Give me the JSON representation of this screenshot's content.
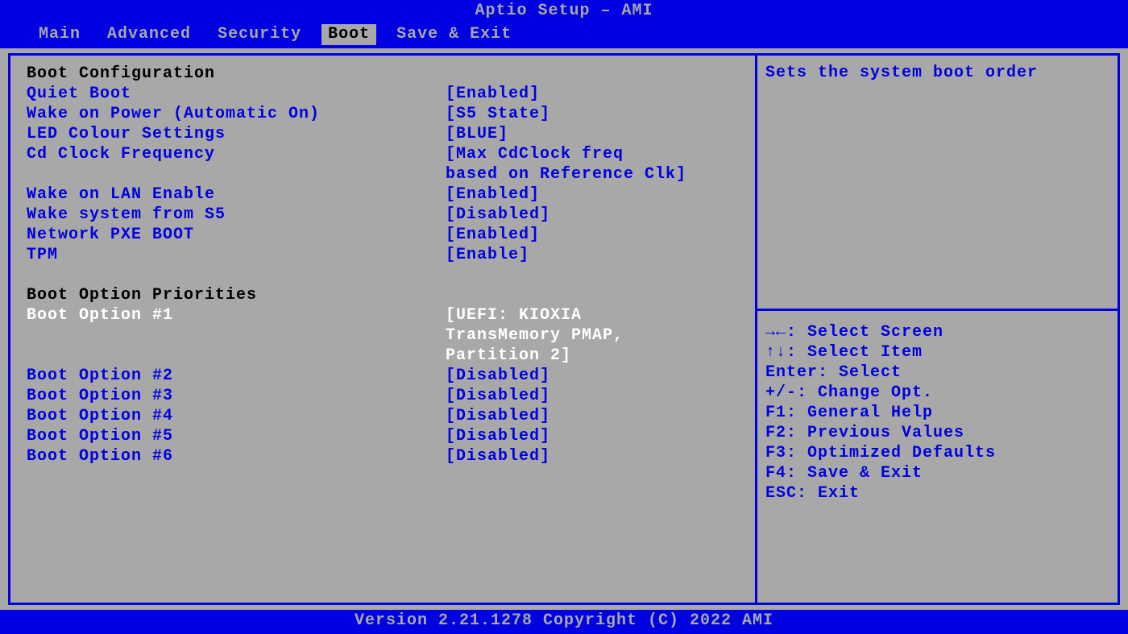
{
  "header": {
    "title": "Aptio Setup – AMI"
  },
  "tabs": [
    {
      "label": "Main",
      "active": false
    },
    {
      "label": "Advanced",
      "active": false
    },
    {
      "label": "Security",
      "active": false
    },
    {
      "label": "Boot",
      "active": true
    },
    {
      "label": "Save & Exit",
      "active": false
    }
  ],
  "sections": {
    "boot_config": {
      "heading": "Boot Configuration",
      "items": [
        {
          "label": "Quiet Boot",
          "value": "[Enabled]",
          "selected": false
        },
        {
          "label": "Wake on Power (Automatic On)",
          "value": "[S5 State]",
          "selected": false
        },
        {
          "label": "LED Colour Settings",
          "value": "[BLUE]",
          "selected": false
        },
        {
          "label": "Cd Clock Frequency",
          "value": "[Max CdClock freq",
          "selected": false
        },
        {
          "label": "",
          "value": "based on Reference Clk]",
          "selected": false
        },
        {
          "label": "Wake on LAN Enable",
          "value": "[Enabled]",
          "selected": false
        },
        {
          "label": "Wake system from S5",
          "value": "[Disabled]",
          "selected": false
        },
        {
          "label": "Network PXE BOOT",
          "value": "[Enabled]",
          "selected": false
        },
        {
          "label": "TPM",
          "value": "[Enable]",
          "selected": false
        }
      ]
    },
    "boot_priorities": {
      "heading": "Boot Option Priorities",
      "items": [
        {
          "label": "Boot Option #1",
          "value": "[UEFI: KIOXIA",
          "selected": true
        },
        {
          "label": "",
          "value": "TransMemory PMAP,",
          "selected": true
        },
        {
          "label": "",
          "value": "Partition 2]",
          "selected": true
        },
        {
          "label": "Boot Option #2",
          "value": "[Disabled]",
          "selected": false
        },
        {
          "label": "Boot Option #3",
          "value": "[Disabled]",
          "selected": false
        },
        {
          "label": "Boot Option #4",
          "value": "[Disabled]",
          "selected": false
        },
        {
          "label": "Boot Option #5",
          "value": "[Disabled]",
          "selected": false
        },
        {
          "label": "Boot Option #6",
          "value": "[Disabled]",
          "selected": false
        }
      ]
    }
  },
  "help": {
    "description": "Sets the system boot order",
    "keys": [
      "→←: Select Screen",
      "↑↓: Select Item",
      "Enter: Select",
      "+/-: Change Opt.",
      "F1: General Help",
      "F2: Previous Values",
      "F3: Optimized Defaults",
      "F4: Save & Exit",
      "ESC: Exit"
    ]
  },
  "footer": {
    "text": "Version 2.21.1278 Copyright (C) 2022 AMI"
  }
}
